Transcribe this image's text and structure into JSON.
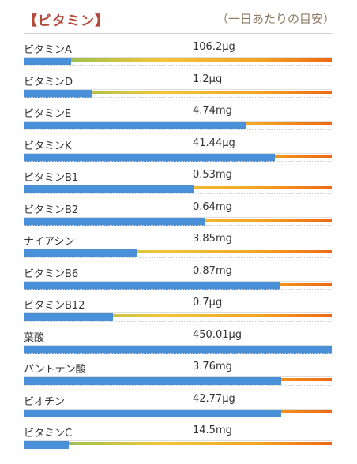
{
  "header": {
    "title": "【ビタミン】",
    "subtitle": "（一日あたりの目安）"
  },
  "colors": {
    "title": "#b5493c",
    "bar_fill": "#4a90d9",
    "gradient": [
      "#5a9bd5",
      "#a8c24a",
      "#f3c43a",
      "#f2a622",
      "#ef6a14"
    ]
  },
  "vitamins": [
    {
      "name": "ビタミンA",
      "value": "106.2μg",
      "fill_fraction": 0.155
    },
    {
      "name": "ビタミンD",
      "value": "1.2μg",
      "fill_fraction": 0.22
    },
    {
      "name": "ビタミンE",
      "value": "4.74mg",
      "fill_fraction": 0.72
    },
    {
      "name": "ビタミンK",
      "value": "41.44μg",
      "fill_fraction": 0.815
    },
    {
      "name": "ビタミンB1",
      "value": "0.53mg",
      "fill_fraction": 0.55
    },
    {
      "name": "ビタミンB2",
      "value": "0.64mg",
      "fill_fraction": 0.59
    },
    {
      "name": "ナイアシン",
      "value": "3.85mg",
      "fill_fraction": 0.37
    },
    {
      "name": "ビタミンB6",
      "value": "0.87mg",
      "fill_fraction": 0.83
    },
    {
      "name": "ビタミンB12",
      "value": "0.7μg",
      "fill_fraction": 0.29
    },
    {
      "name": "葉酸",
      "value": "450.01μg",
      "fill_fraction": 1.0
    },
    {
      "name": "パントテン酸",
      "value": "3.76mg",
      "fill_fraction": 0.835
    },
    {
      "name": "ビオチン",
      "value": "42.77μg",
      "fill_fraction": 0.835
    },
    {
      "name": "ビタミンC",
      "value": "14.5mg",
      "fill_fraction": 0.145
    }
  ]
}
